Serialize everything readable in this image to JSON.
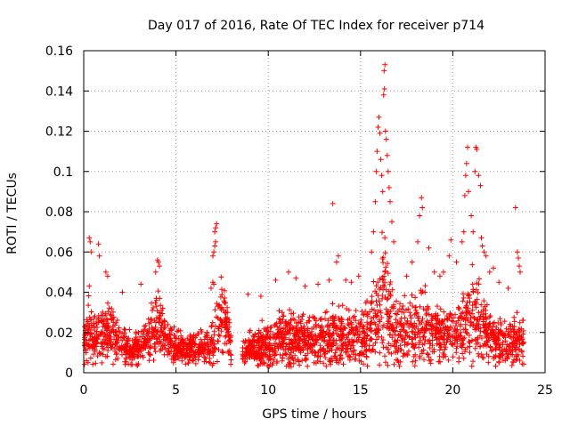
{
  "chart_data": {
    "type": "scatter",
    "title": "Day 017 of 2016, Rate Of TEC Index for receiver p714",
    "xlabel": "GPS time / hours",
    "ylabel": "ROTI / TECUs",
    "xlim": [
      0,
      25
    ],
    "ylim": [
      0,
      0.16
    ],
    "xticks": [
      0,
      5,
      10,
      15,
      20,
      25
    ],
    "yticks": [
      0,
      0.02,
      0.04,
      0.06,
      0.08,
      0.1,
      0.12,
      0.14,
      0.16
    ],
    "ytick_labels": [
      "0",
      "0.02",
      "0.04",
      "0.06",
      "0.08",
      "0.1",
      "0.12",
      "0.14",
      "0.16"
    ],
    "xtick_labels": [
      "0",
      "5",
      "10",
      "15",
      "20",
      "25"
    ],
    "grid": true,
    "marker": "+",
    "color": "#ff0000",
    "data_gap_hours": [
      8.0,
      8.6
    ],
    "envelope": {
      "x": [
        0.0,
        0.3,
        0.6,
        1.0,
        1.5,
        2.0,
        2.6,
        3.0,
        3.5,
        4.0,
        4.3,
        4.8,
        5.5,
        6.0,
        6.5,
        7.0,
        7.3,
        7.6,
        8.0,
        8.6,
        9.0,
        9.5,
        10.0,
        10.5,
        11.0,
        11.5,
        12.0,
        12.5,
        13.0,
        13.5,
        14.0,
        14.5,
        15.0,
        15.5,
        15.8,
        16.0,
        16.2,
        16.5,
        17.0,
        17.5,
        18.0,
        18.5,
        19.0,
        19.5,
        20.0,
        20.5,
        21.0,
        21.3,
        21.6,
        22.0,
        22.5,
        23.0,
        23.5,
        23.8
      ],
      "median": [
        0.015,
        0.022,
        0.015,
        0.02,
        0.02,
        0.014,
        0.013,
        0.012,
        0.016,
        0.026,
        0.018,
        0.014,
        0.012,
        0.012,
        0.013,
        0.015,
        0.025,
        0.03,
        0.012,
        0.01,
        0.012,
        0.013,
        0.014,
        0.016,
        0.018,
        0.016,
        0.015,
        0.016,
        0.016,
        0.017,
        0.018,
        0.018,
        0.016,
        0.02,
        0.024,
        0.032,
        0.036,
        0.03,
        0.02,
        0.02,
        0.021,
        0.024,
        0.02,
        0.018,
        0.02,
        0.022,
        0.026,
        0.028,
        0.024,
        0.018,
        0.016,
        0.015,
        0.016,
        0.016
      ],
      "spread": [
        0.012,
        0.018,
        0.012,
        0.016,
        0.014,
        0.01,
        0.009,
        0.009,
        0.012,
        0.018,
        0.012,
        0.01,
        0.008,
        0.008,
        0.009,
        0.012,
        0.02,
        0.022,
        0.008,
        0.007,
        0.008,
        0.01,
        0.012,
        0.014,
        0.016,
        0.014,
        0.012,
        0.012,
        0.013,
        0.014,
        0.014,
        0.013,
        0.013,
        0.018,
        0.024,
        0.03,
        0.036,
        0.026,
        0.018,
        0.017,
        0.02,
        0.022,
        0.017,
        0.015,
        0.017,
        0.02,
        0.024,
        0.026,
        0.02,
        0.015,
        0.013,
        0.012,
        0.013,
        0.012
      ]
    },
    "peaks": [
      {
        "x": 0.3,
        "y": 0.067
      },
      {
        "x": 0.35,
        "y": 0.065
      },
      {
        "x": 0.4,
        "y": 0.06
      },
      {
        "x": 0.8,
        "y": 0.064
      },
      {
        "x": 0.85,
        "y": 0.058
      },
      {
        "x": 1.2,
        "y": 0.05
      },
      {
        "x": 1.3,
        "y": 0.048
      },
      {
        "x": 2.1,
        "y": 0.04
      },
      {
        "x": 3.1,
        "y": 0.044
      },
      {
        "x": 3.9,
        "y": 0.05
      },
      {
        "x": 4.0,
        "y": 0.056
      },
      {
        "x": 4.05,
        "y": 0.055
      },
      {
        "x": 4.1,
        "y": 0.053
      },
      {
        "x": 6.9,
        "y": 0.042
      },
      {
        "x": 7.0,
        "y": 0.045
      },
      {
        "x": 7.05,
        "y": 0.044
      },
      {
        "x": 7.0,
        "y": 0.058
      },
      {
        "x": 7.05,
        "y": 0.06
      },
      {
        "x": 7.1,
        "y": 0.063
      },
      {
        "x": 7.15,
        "y": 0.065
      },
      {
        "x": 7.1,
        "y": 0.07
      },
      {
        "x": 7.15,
        "y": 0.072
      },
      {
        "x": 7.2,
        "y": 0.074
      },
      {
        "x": 8.9,
        "y": 0.039
      },
      {
        "x": 9.6,
        "y": 0.038
      },
      {
        "x": 10.4,
        "y": 0.046
      },
      {
        "x": 11.1,
        "y": 0.05
      },
      {
        "x": 11.5,
        "y": 0.047
      },
      {
        "x": 12.0,
        "y": 0.043
      },
      {
        "x": 12.7,
        "y": 0.044
      },
      {
        "x": 13.3,
        "y": 0.046
      },
      {
        "x": 13.5,
        "y": 0.084
      },
      {
        "x": 13.7,
        "y": 0.055
      },
      {
        "x": 13.8,
        "y": 0.058
      },
      {
        "x": 14.2,
        "y": 0.046
      },
      {
        "x": 14.5,
        "y": 0.045
      },
      {
        "x": 14.9,
        "y": 0.048
      },
      {
        "x": 15.6,
        "y": 0.06
      },
      {
        "x": 15.7,
        "y": 0.07
      },
      {
        "x": 15.8,
        "y": 0.085
      },
      {
        "x": 15.85,
        "y": 0.1
      },
      {
        "x": 15.9,
        "y": 0.11
      },
      {
        "x": 15.95,
        "y": 0.122
      },
      {
        "x": 16.0,
        "y": 0.127
      },
      {
        "x": 16.05,
        "y": 0.119
      },
      {
        "x": 16.1,
        "y": 0.106
      },
      {
        "x": 16.15,
        "y": 0.098
      },
      {
        "x": 16.2,
        "y": 0.09
      },
      {
        "x": 16.25,
        "y": 0.138
      },
      {
        "x": 16.3,
        "y": 0.141
      },
      {
        "x": 16.28,
        "y": 0.15
      },
      {
        "x": 16.32,
        "y": 0.153
      },
      {
        "x": 16.35,
        "y": 0.12
      },
      {
        "x": 16.4,
        "y": 0.116
      },
      {
        "x": 16.45,
        "y": 0.108
      },
      {
        "x": 16.5,
        "y": 0.1
      },
      {
        "x": 16.55,
        "y": 0.092
      },
      {
        "x": 16.6,
        "y": 0.085
      },
      {
        "x": 16.7,
        "y": 0.075
      },
      {
        "x": 16.8,
        "y": 0.065
      },
      {
        "x": 17.5,
        "y": 0.048
      },
      {
        "x": 17.8,
        "y": 0.055
      },
      {
        "x": 18.1,
        "y": 0.065
      },
      {
        "x": 18.2,
        "y": 0.078
      },
      {
        "x": 18.3,
        "y": 0.087
      },
      {
        "x": 18.35,
        "y": 0.082
      },
      {
        "x": 18.7,
        "y": 0.062
      },
      {
        "x": 19.0,
        "y": 0.05
      },
      {
        "x": 19.3,
        "y": 0.048
      },
      {
        "x": 19.5,
        "y": 0.05
      },
      {
        "x": 19.8,
        "y": 0.058
      },
      {
        "x": 19.9,
        "y": 0.066
      },
      {
        "x": 20.2,
        "y": 0.055
      },
      {
        "x": 20.5,
        "y": 0.065
      },
      {
        "x": 20.6,
        "y": 0.07
      },
      {
        "x": 20.65,
        "y": 0.088
      },
      {
        "x": 20.7,
        "y": 0.098
      },
      {
        "x": 20.75,
        "y": 0.104
      },
      {
        "x": 20.8,
        "y": 0.112
      },
      {
        "x": 20.85,
        "y": 0.09
      },
      {
        "x": 21.0,
        "y": 0.078
      },
      {
        "x": 21.1,
        "y": 0.07
      },
      {
        "x": 21.2,
        "y": 0.1
      },
      {
        "x": 21.25,
        "y": 0.112
      },
      {
        "x": 21.3,
        "y": 0.111
      },
      {
        "x": 21.4,
        "y": 0.098
      },
      {
        "x": 21.5,
        "y": 0.093
      },
      {
        "x": 21.55,
        "y": 0.067
      },
      {
        "x": 21.6,
        "y": 0.063
      },
      {
        "x": 21.7,
        "y": 0.06
      },
      {
        "x": 21.8,
        "y": 0.058
      },
      {
        "x": 22.0,
        "y": 0.05
      },
      {
        "x": 22.2,
        "y": 0.052
      },
      {
        "x": 22.5,
        "y": 0.045
      },
      {
        "x": 23.0,
        "y": 0.042
      },
      {
        "x": 23.4,
        "y": 0.082
      },
      {
        "x": 23.5,
        "y": 0.06
      },
      {
        "x": 23.55,
        "y": 0.057
      },
      {
        "x": 23.6,
        "y": 0.053
      },
      {
        "x": 23.65,
        "y": 0.05
      }
    ]
  }
}
